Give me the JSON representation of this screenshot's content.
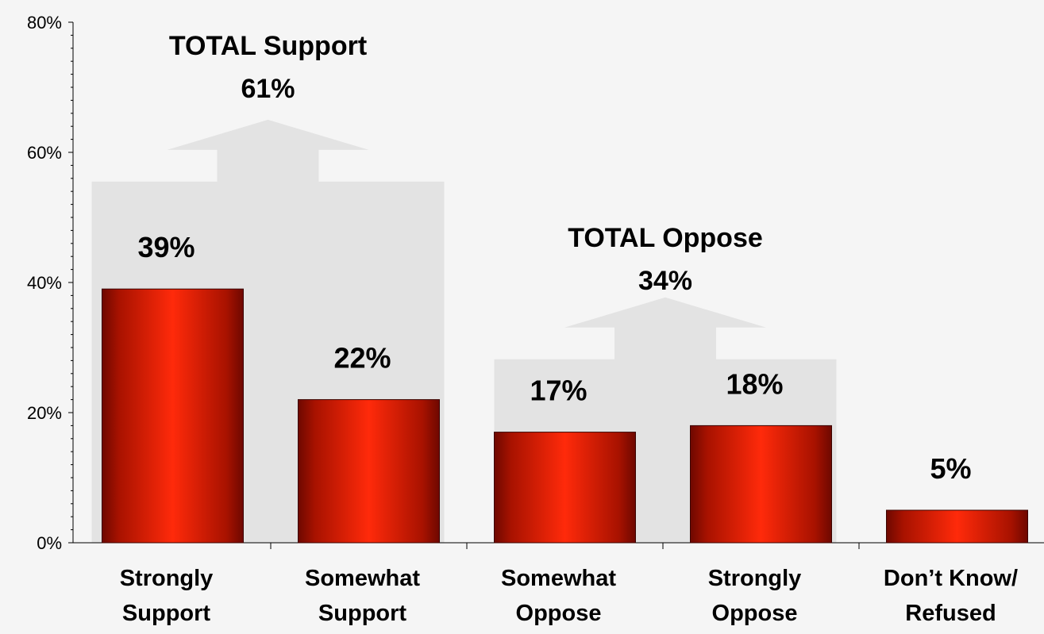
{
  "chart_data": {
    "type": "bar",
    "categories": [
      [
        "Strongly",
        "Support"
      ],
      [
        "Somewhat",
        "Support"
      ],
      [
        "Somewhat",
        "Oppose"
      ],
      [
        "Strongly",
        "Oppose"
      ],
      [
        "Don’t Know/",
        "Refused"
      ]
    ],
    "values": [
      39,
      22,
      17,
      18,
      5
    ],
    "value_labels": [
      "39%",
      "22%",
      "17%",
      "18%",
      "5%"
    ],
    "ylim": [
      0,
      80
    ],
    "yticks": [
      {
        "value": 0,
        "label": "0%"
      },
      {
        "value": 20,
        "label": "20%"
      },
      {
        "value": 40,
        "label": "40%"
      },
      {
        "value": 60,
        "label": "60%"
      },
      {
        "value": 80,
        "label": "80%"
      }
    ],
    "groups": [
      {
        "title": "TOTAL Support",
        "value_label": "61%",
        "categories": [
          0,
          1
        ]
      },
      {
        "title": "TOTAL Oppose",
        "value_label": "34%",
        "categories": [
          2,
          3
        ]
      }
    ],
    "colors": {
      "bar_edge": "#8e0c00",
      "bar_center": "#ff2a0a",
      "group_fill": "#e3e3e3",
      "background": "#f5f5f5"
    },
    "grid": false
  }
}
